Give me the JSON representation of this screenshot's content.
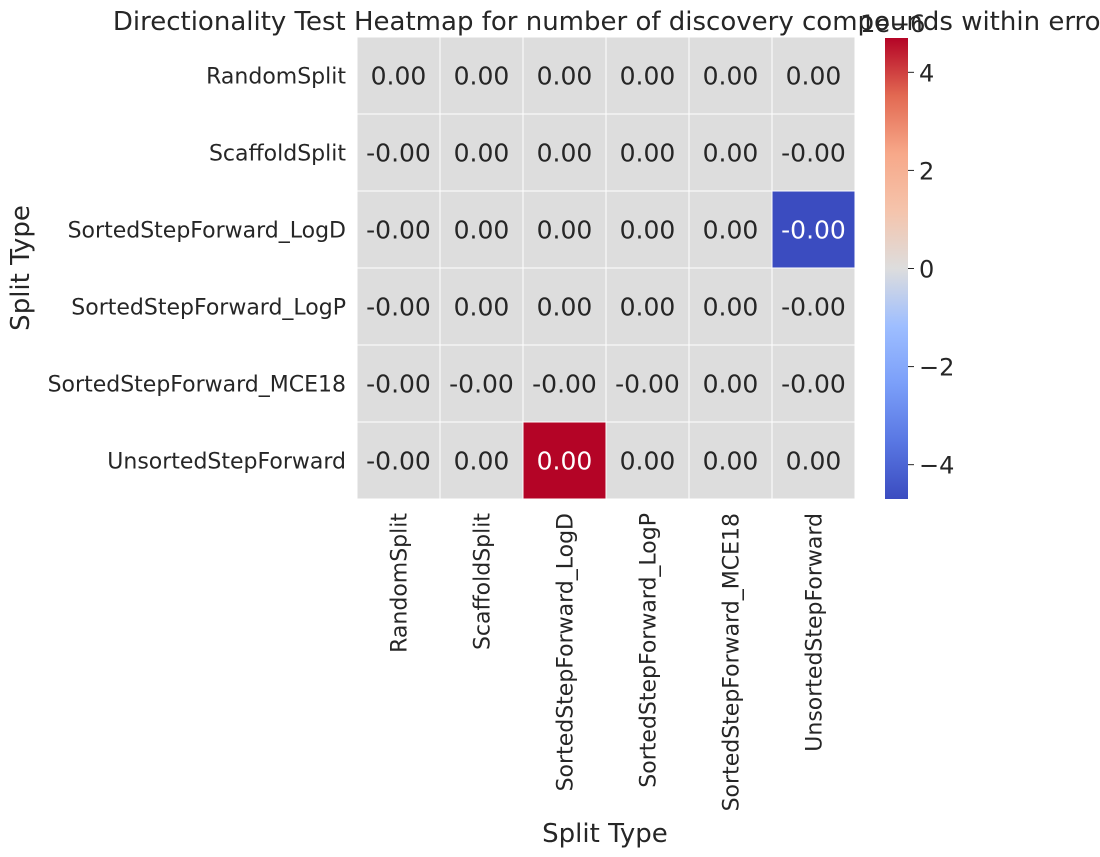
{
  "chart_data": {
    "type": "heatmap",
    "title": "Directionality Test Heatmap for number of discovery compounds within error range",
    "xlabel": "Split Type",
    "ylabel": "Split Type",
    "row_labels": [
      "RandomSplit",
      "ScaffoldSplit",
      "SortedStepForward_LogD",
      "SortedStepForward_LogP",
      "SortedStepForward_MCE18",
      "UnsortedStepForward"
    ],
    "col_labels": [
      "RandomSplit",
      "ScaffoldSplit",
      "SortedStepForward_LogD",
      "SortedStepForward_LogP",
      "SortedStepForward_MCE18",
      "UnsortedStepForward"
    ],
    "values": [
      [
        0,
        0,
        0,
        0,
        0,
        0
      ],
      [
        0,
        0,
        0,
        0,
        0,
        0
      ],
      [
        0,
        0,
        0,
        0,
        0,
        -4.7e-06
      ],
      [
        0,
        0,
        0,
        0,
        0,
        0
      ],
      [
        0,
        0,
        0,
        0,
        0,
        0
      ],
      [
        0,
        0,
        4.7e-06,
        0,
        0,
        0
      ]
    ],
    "cell_labels": [
      [
        "0.00",
        "0.00",
        "0.00",
        "0.00",
        "0.00",
        "0.00"
      ],
      [
        "-0.00",
        "0.00",
        "0.00",
        "0.00",
        "0.00",
        "-0.00"
      ],
      [
        "-0.00",
        "0.00",
        "0.00",
        "0.00",
        "0.00",
        "-0.00"
      ],
      [
        "-0.00",
        "0.00",
        "0.00",
        "0.00",
        "0.00",
        "-0.00"
      ],
      [
        "-0.00",
        "-0.00",
        "-0.00",
        "-0.00",
        "0.00",
        "-0.00"
      ],
      [
        "-0.00",
        "0.00",
        "0.00",
        "0.00",
        "0.00",
        "0.00"
      ]
    ],
    "colormap": "coolwarm",
    "colors": {
      "low": "#3b4cc0",
      "mid": "#dddddd",
      "high": "#b40426"
    },
    "colorbar": {
      "range": [
        -4.7e-06,
        4.7e-06
      ],
      "ticks": [
        4,
        2,
        0,
        -2,
        -4
      ],
      "tick_labels": [
        "4",
        "2",
        "0",
        "−2",
        "−4"
      ],
      "offset_label": "1e−6"
    },
    "grid": false
  }
}
